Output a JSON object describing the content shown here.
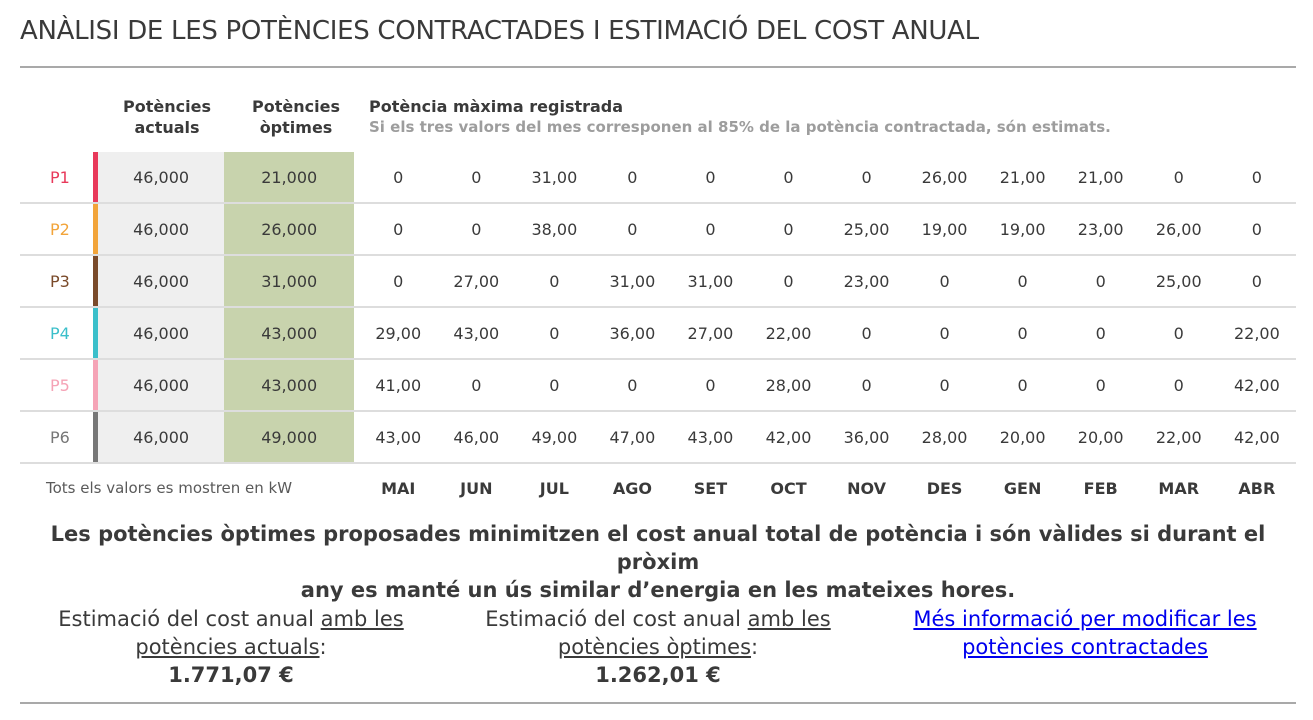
{
  "title": "ANÀLISI DE LES POTÈNCIES CONTRACTADES I ESTIMACIÓ DEL COST ANUAL",
  "headers": {
    "actual": [
      "Potències",
      "actuals"
    ],
    "optimal": [
      "Potències",
      "òptimes"
    ],
    "max_title": "Potència màxima registrada",
    "max_note": "Si els tres valors del mes corresponen al 85% de la potència contractada, són estimats."
  },
  "colors": {
    "P1": "#e8395a",
    "P2": "#f2a43a",
    "P3": "#7a4a2a",
    "P4": "#3bbfca",
    "P5": "#f5a3b6",
    "P6": "#777777",
    "optimal_bg": "#c8d3ad",
    "actual_bg": "#efefef"
  },
  "rows": [
    {
      "period": "P1",
      "actual": "46,000",
      "optimal": "21,000",
      "months": [
        "0",
        "0",
        "31,00",
        "0",
        "0",
        "0",
        "0",
        "26,00",
        "21,00",
        "21,00",
        "0",
        "0"
      ]
    },
    {
      "period": "P2",
      "actual": "46,000",
      "optimal": "26,000",
      "months": [
        "0",
        "0",
        "38,00",
        "0",
        "0",
        "0",
        "25,00",
        "19,00",
        "19,00",
        "23,00",
        "26,00",
        "0"
      ]
    },
    {
      "period": "P3",
      "actual": "46,000",
      "optimal": "31,000",
      "months": [
        "0",
        "27,00",
        "0",
        "31,00",
        "31,00",
        "0",
        "23,00",
        "0",
        "0",
        "0",
        "25,00",
        "0"
      ]
    },
    {
      "period": "P4",
      "actual": "46,000",
      "optimal": "43,000",
      "months": [
        "29,00",
        "43,00",
        "0",
        "36,00",
        "27,00",
        "22,00",
        "0",
        "0",
        "0",
        "0",
        "0",
        "22,00"
      ]
    },
    {
      "period": "P5",
      "actual": "46,000",
      "optimal": "43,000",
      "months": [
        "41,00",
        "0",
        "0",
        "0",
        "0",
        "28,00",
        "0",
        "0",
        "0",
        "0",
        "0",
        "42,00"
      ]
    },
    {
      "period": "P6",
      "actual": "46,000",
      "optimal": "49,000",
      "months": [
        "43,00",
        "46,00",
        "49,00",
        "47,00",
        "43,00",
        "42,00",
        "36,00",
        "28,00",
        "20,00",
        "20,00",
        "22,00",
        "42,00"
      ]
    }
  ],
  "footer": {
    "note": "Tots els valors es mostren en kW",
    "months": [
      "MAI",
      "JUN",
      "JUL",
      "AGO",
      "SET",
      "OCT",
      "NOV",
      "DES",
      "GEN",
      "FEB",
      "MAR",
      "ABR"
    ]
  },
  "conclusion": {
    "line1": "Les potències òptimes proposades minimitzen el cost anual total de potència i són vàlides si durant el pròxim",
    "line2": "any es manté un ús similar d’energia en les mateixes hores."
  },
  "cost_actual": {
    "prefix": "Estimació del cost anual ",
    "linked": "amb les potències actuals",
    "suffix": ":",
    "value": "1.771,07 €"
  },
  "cost_optimal": {
    "prefix": "Estimació del cost anual ",
    "linked": "amb les potències òptimes",
    "suffix": ":",
    "value": "1.262,01 €"
  },
  "info_link": "Més informació per modificar les potències contractades"
}
